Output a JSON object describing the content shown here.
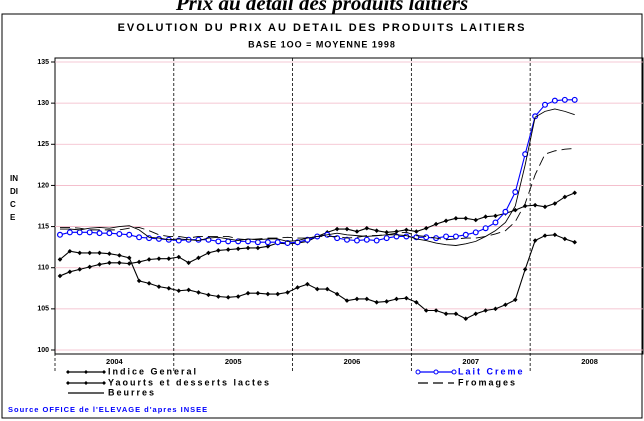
{
  "chart_data": {
    "type": "line",
    "page_title": "Prix au detail des produits laitiers",
    "title": "EVOLUTION DU PRIX AU DETAIL DES PRODUITS LAITIERS",
    "subtitle": "BASE 1OO = MOYENNE 1998",
    "y_label": "INDICE",
    "source": "Source OFFICE de l'ELEVAGE d'apres INSEE",
    "x": [
      2004.042,
      2004.125,
      2004.208,
      2004.292,
      2004.375,
      2004.458,
      2004.542,
      2004.625,
      2004.708,
      2004.792,
      2004.875,
      2004.958,
      2005.042,
      2005.125,
      2005.208,
      2005.292,
      2005.375,
      2005.458,
      2005.542,
      2005.625,
      2005.708,
      2005.792,
      2005.875,
      2005.958,
      2006.042,
      2006.125,
      2006.208,
      2006.292,
      2006.375,
      2006.458,
      2006.542,
      2006.625,
      2006.708,
      2006.792,
      2006.875,
      2006.958,
      2007.042,
      2007.125,
      2007.208,
      2007.292,
      2007.375,
      2007.458,
      2007.542,
      2007.625,
      2007.708,
      2007.792,
      2007.875,
      2007.958,
      2008.042,
      2008.125,
      2008.208,
      2008.292,
      2008.375
    ],
    "xlim": [
      2004,
      2008.95
    ],
    "xticks": [
      {
        "value": 2004.5,
        "label": "2004"
      },
      {
        "value": 2005.5,
        "label": "2005"
      },
      {
        "value": 2006.5,
        "label": "2006"
      },
      {
        "value": 2007.5,
        "label": "2007"
      },
      {
        "value": 2008.5,
        "label": "2008"
      }
    ],
    "xgrid": [
      2004,
      2005,
      2006,
      2007,
      2008
    ],
    "ylim": [
      100,
      135
    ],
    "yticks": [
      100,
      105,
      110,
      115,
      120,
      125,
      130,
      135
    ],
    "grid": true,
    "series": [
      {
        "name": "Indice General",
        "color": "#000000",
        "marker": "diamond",
        "dash": false,
        "values": [
          109.0,
          109.5,
          109.8,
          110.1,
          110.4,
          110.6,
          110.6,
          110.5,
          110.7,
          111.0,
          111.1,
          111.1,
          111.3,
          110.6,
          111.2,
          111.8,
          112.1,
          112.2,
          112.3,
          112.4,
          112.4,
          112.6,
          113.0,
          112.9,
          113.0,
          113.2,
          113.8,
          114.3,
          114.7,
          114.7,
          114.4,
          114.8,
          114.5,
          114.3,
          114.4,
          114.6,
          114.4,
          114.8,
          115.3,
          115.7,
          116.0,
          116.0,
          115.8,
          116.2,
          116.3,
          116.6,
          117.0,
          117.5,
          117.6,
          117.4,
          117.8,
          118.6,
          119.1
        ]
      },
      {
        "name": "Lait Creme",
        "color": "#0000ff",
        "marker": "circle",
        "dash": false,
        "values": [
          114.0,
          114.3,
          114.3,
          114.3,
          114.2,
          114.2,
          114.1,
          114.0,
          113.7,
          113.6,
          113.5,
          113.4,
          113.3,
          113.4,
          113.4,
          113.4,
          113.2,
          113.2,
          113.2,
          113.2,
          113.1,
          113.1,
          113.1,
          113.0,
          113.1,
          113.4,
          113.8,
          114.0,
          113.6,
          113.4,
          113.3,
          113.4,
          113.3,
          113.6,
          113.8,
          113.8,
          113.7,
          113.7,
          113.6,
          113.8,
          113.8,
          114.0,
          114.3,
          114.8,
          115.5,
          116.8,
          119.2,
          123.8,
          128.4,
          129.8,
          130.3,
          130.4,
          130.4
        ]
      },
      {
        "name": "Yaourts et desserts lactes",
        "color": "#000000",
        "marker": "diamond",
        "dash": false,
        "values": [
          111.0,
          112.0,
          111.8,
          111.8,
          111.8,
          111.7,
          111.5,
          111.2,
          108.4,
          108.1,
          107.7,
          107.5,
          107.2,
          107.3,
          107.0,
          106.7,
          106.5,
          106.4,
          106.5,
          106.9,
          106.9,
          106.8,
          106.8,
          107.0,
          107.6,
          108.0,
          107.4,
          107.4,
          106.8,
          106.0,
          106.2,
          106.2,
          105.8,
          105.9,
          106.2,
          106.3,
          105.8,
          104.8,
          104.8,
          104.4,
          104.4,
          103.8,
          104.4,
          104.8,
          105.0,
          105.5,
          106.1,
          109.8,
          113.3,
          113.9,
          114.0,
          113.5,
          113.1
        ]
      },
      {
        "name": "Fromages",
        "color": "#000000",
        "marker": null,
        "dash": true,
        "values": [
          114.9,
          114.9,
          114.8,
          114.6,
          114.6,
          114.6,
          114.6,
          114.8,
          114.9,
          114.5,
          114.0,
          113.8,
          113.8,
          113.6,
          113.8,
          113.8,
          113.8,
          113.8,
          113.5,
          113.4,
          113.5,
          113.6,
          113.6,
          113.7,
          113.6,
          113.6,
          113.8,
          113.8,
          113.8,
          113.6,
          113.7,
          113.9,
          113.9,
          114.0,
          114.2,
          114.3,
          113.9,
          113.8,
          113.6,
          113.4,
          113.5,
          113.6,
          113.6,
          113.8,
          114.1,
          114.5,
          115.6,
          117.8,
          121.3,
          123.8,
          124.2,
          124.4,
          124.5
        ]
      },
      {
        "name": "Beurres",
        "color": "#000000",
        "marker": null,
        "dash": false,
        "values": [
          114.7,
          114.7,
          114.6,
          114.8,
          114.9,
          114.8,
          115.0,
          115.1,
          114.6,
          113.7,
          113.6,
          113.4,
          113.5,
          113.4,
          113.3,
          113.6,
          113.7,
          113.5,
          113.3,
          113.5,
          113.4,
          113.5,
          113.5,
          113.2,
          113.3,
          113.6,
          113.8,
          114.0,
          114.2,
          114.0,
          113.9,
          113.8,
          113.9,
          114.0,
          114.0,
          113.9,
          113.5,
          113.3,
          113.0,
          112.8,
          112.7,
          112.9,
          113.2,
          113.8,
          114.5,
          115.5,
          117.5,
          122.5,
          128.3,
          129.0,
          129.3,
          129.0,
          128.6
        ]
      }
    ]
  }
}
